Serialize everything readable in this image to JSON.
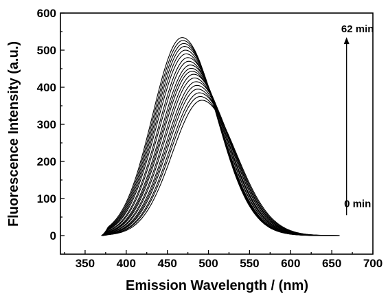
{
  "chart_data": {
    "type": "line",
    "title": "",
    "xlabel": "Emission Wavelength / (nm)",
    "ylabel": "Fluorescence Intensity (a.u.)",
    "xlim": [
      320,
      700
    ],
    "ylim": [
      -50,
      600
    ],
    "x_ticks": [
      350,
      400,
      450,
      500,
      550,
      600,
      650,
      700
    ],
    "y_ticks": [
      0,
      100,
      200,
      300,
      400,
      500,
      600
    ],
    "grid": false,
    "legend": "none",
    "annotations": {
      "top_label": "62 min",
      "bottom_label": "0 min",
      "arrow": {
        "from": {
          "x": 668,
          "y": 55
        },
        "to": {
          "x": 668,
          "y": 535
        }
      }
    },
    "x_range": [
      370,
      660
    ],
    "series": [
      {
        "peak_x": 492,
        "peak_y": 365
      },
      {
        "peak_x": 490,
        "peak_y": 375
      },
      {
        "peak_x": 489,
        "peak_y": 385
      },
      {
        "peak_x": 487,
        "peak_y": 395
      },
      {
        "peak_x": 486,
        "peak_y": 405
      },
      {
        "peak_x": 485,
        "peak_y": 415
      },
      {
        "peak_x": 483,
        "peak_y": 425
      },
      {
        "peak_x": 482,
        "peak_y": 435
      },
      {
        "peak_x": 480,
        "peak_y": 443
      },
      {
        "peak_x": 479,
        "peak_y": 451
      },
      {
        "peak_x": 478,
        "peak_y": 460
      },
      {
        "peak_x": 476,
        "peak_y": 470
      },
      {
        "peak_x": 475,
        "peak_y": 480
      },
      {
        "peak_x": 473,
        "peak_y": 490
      },
      {
        "peak_x": 472,
        "peak_y": 500
      },
      {
        "peak_x": 471,
        "peak_y": 510
      },
      {
        "peak_x": 470,
        "peak_y": 518
      },
      {
        "peak_x": 469,
        "peak_y": 526
      },
      {
        "peak_x": 468,
        "peak_y": 534
      }
    ]
  }
}
